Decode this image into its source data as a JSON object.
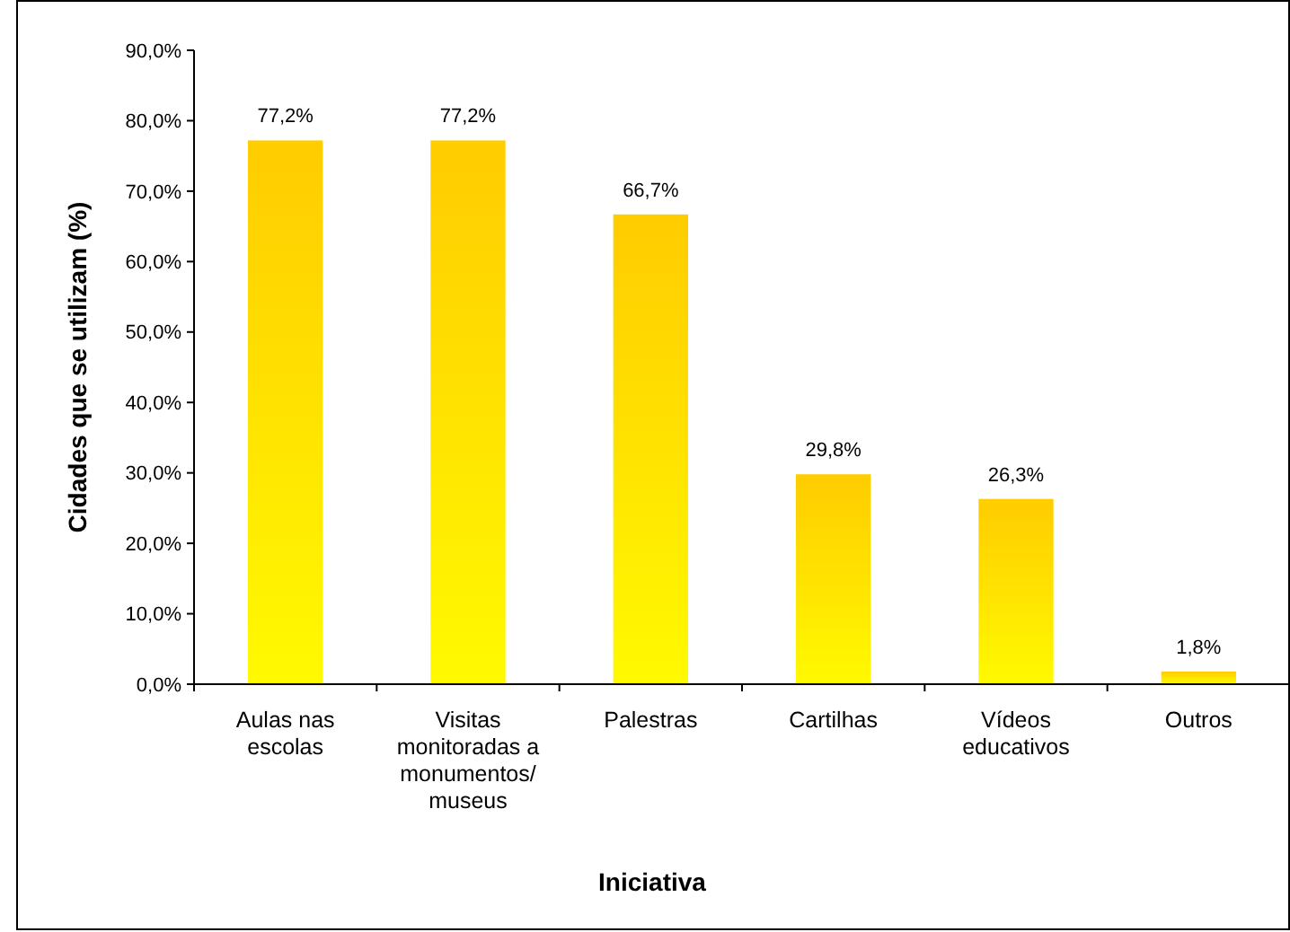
{
  "chart_data": {
    "type": "bar",
    "xlabel": "Iniciativa",
    "ylabel": "Cidades que se utilizam (%)",
    "categories": [
      "Aulas nas escolas",
      "Visitas monitoradas a monumentos/ museus",
      "Palestras",
      "Cartilhas",
      "Vídeos educativos",
      "Outros"
    ],
    "values": [
      77.2,
      77.2,
      66.7,
      29.8,
      26.3,
      1.8
    ],
    "value_labels": [
      "77,2%",
      "77,2%",
      "66,7%",
      "29,8%",
      "26,3%",
      "1,8%"
    ],
    "color": "#ffcc00",
    "ylim": [
      0,
      90
    ],
    "yticks": [
      {
        "value": 0,
        "label": "0,0%"
      },
      {
        "value": 10,
        "label": "10,0%"
      },
      {
        "value": 20,
        "label": "20,0%"
      },
      {
        "value": 30,
        "label": "30,0%"
      },
      {
        "value": 40,
        "label": "40,0%"
      },
      {
        "value": 50,
        "label": "50,0%"
      },
      {
        "value": 60,
        "label": "60,0%"
      },
      {
        "value": 70,
        "label": "70,0%"
      },
      {
        "value": 80,
        "label": "80,0%"
      },
      {
        "value": 90,
        "label": "90,0%"
      }
    ],
    "grid": false
  }
}
